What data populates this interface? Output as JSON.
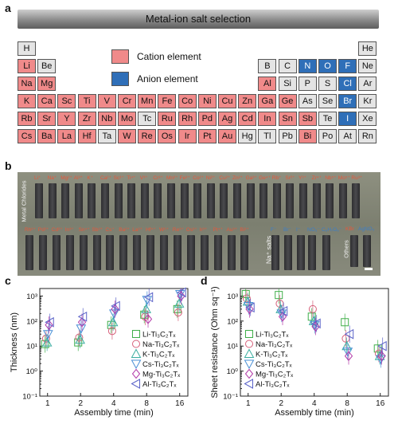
{
  "panels": {
    "a": "a",
    "b": "b",
    "c": "c",
    "d": "d"
  },
  "table": {
    "title": "Metal-ion salt selection",
    "legend": {
      "cation": "Cation element",
      "anion": "Anion element"
    },
    "rows": [
      [
        [
          "H",
          "o"
        ],
        null,
        null,
        null,
        null,
        null,
        null,
        null,
        null,
        null,
        null,
        null,
        null,
        null,
        null,
        null,
        null,
        [
          "He",
          "o"
        ]
      ],
      [
        [
          "Li",
          "c"
        ],
        [
          "Be",
          "o"
        ],
        null,
        null,
        null,
        null,
        null,
        null,
        null,
        null,
        null,
        null,
        [
          "B",
          "o"
        ],
        [
          "C",
          "o"
        ],
        [
          "N",
          "a"
        ],
        [
          "O",
          "a"
        ],
        [
          "F",
          "a"
        ],
        [
          "Ne",
          "o"
        ]
      ],
      [
        [
          "Na",
          "c"
        ],
        [
          "Mg",
          "c"
        ],
        null,
        null,
        null,
        null,
        null,
        null,
        null,
        null,
        null,
        null,
        [
          "Al",
          "c"
        ],
        [
          "Si",
          "o"
        ],
        [
          "P",
          "o"
        ],
        [
          "S",
          "o"
        ],
        [
          "Cl",
          "a"
        ],
        [
          "Ar",
          "o"
        ]
      ],
      [
        [
          "K",
          "c"
        ],
        [
          "Ca",
          "c"
        ],
        [
          "Sc",
          "c"
        ],
        [
          "Ti",
          "c"
        ],
        [
          "V",
          "c"
        ],
        [
          "Cr",
          "c"
        ],
        [
          "Mn",
          "c"
        ],
        [
          "Fe",
          "c"
        ],
        [
          "Co",
          "c"
        ],
        [
          "Ni",
          "c"
        ],
        [
          "Cu",
          "c"
        ],
        [
          "Zn",
          "c"
        ],
        [
          "Ga",
          "c"
        ],
        [
          "Ge",
          "c"
        ],
        [
          "As",
          "o"
        ],
        [
          "Se",
          "o"
        ],
        [
          "Br",
          "a"
        ],
        [
          "Kr",
          "o"
        ]
      ],
      [
        [
          "Rb",
          "c"
        ],
        [
          "Sr",
          "c"
        ],
        [
          "Y",
          "c"
        ],
        [
          "Zr",
          "c"
        ],
        [
          "Nb",
          "c"
        ],
        [
          "Mo",
          "c"
        ],
        [
          "Tc",
          "o"
        ],
        [
          "Ru",
          "c"
        ],
        [
          "Rh",
          "c"
        ],
        [
          "Pd",
          "c"
        ],
        [
          "Ag",
          "c"
        ],
        [
          "Cd",
          "c"
        ],
        [
          "In",
          "c"
        ],
        [
          "Sn",
          "c"
        ],
        [
          "Sb",
          "c"
        ],
        [
          "Te",
          "o"
        ],
        [
          "I",
          "a"
        ],
        [
          "Xe",
          "o"
        ]
      ],
      [
        [
          "Cs",
          "c"
        ],
        [
          "Ba",
          "c"
        ],
        [
          "La",
          "c"
        ],
        [
          "Hf",
          "c"
        ],
        [
          "Ta",
          "o"
        ],
        [
          "W",
          "c"
        ],
        [
          "Re",
          "c"
        ],
        [
          "Os",
          "c"
        ],
        [
          "Ir",
          "c"
        ],
        [
          "Pt",
          "c"
        ],
        [
          "Au",
          "c"
        ],
        [
          "Hg",
          "o"
        ],
        [
          "Tl",
          "o"
        ],
        [
          "Pb",
          "o"
        ],
        [
          "Bi",
          "c"
        ],
        [
          "Po",
          "o"
        ],
        [
          "At",
          "o"
        ],
        [
          "Rn",
          "o"
        ]
      ]
    ]
  },
  "photo": {
    "metal_chlorides_label": "Metal Chlorides",
    "na_salts_label": "Na⁺ salts",
    "others_label": "Others",
    "top_ions": [
      "Li⁺",
      "Na⁺",
      "Mg²⁺",
      "Al³⁺",
      "K⁺",
      "Ca²⁺",
      "Sc³⁺",
      "Ti⁴⁺",
      "V³⁺",
      "Cr³⁺",
      "Mn²⁺",
      "Fe³⁺",
      "Co²⁺",
      "Ni²⁺",
      "Cu²⁺",
      "Zn²⁺",
      "Ga³⁺",
      "Ge⁴⁺",
      "Rb⁺",
      "Sr²⁺",
      "Y³⁺",
      "Zr⁴⁺",
      "Nb⁵⁺",
      "Mo⁵⁺",
      "Ru³⁺"
    ],
    "bottom_ions": [
      "Rh³⁺",
      "Pd²⁺",
      "Cd²⁺",
      "In³⁺",
      "Sn⁴⁺",
      "Sb³⁺",
      "Cs⁺",
      "Ba²⁺",
      "La³⁺",
      "Hf⁴⁺",
      "W⁶⁺",
      "Re³⁺",
      "Os³⁺",
      "Ir³⁺",
      "Pt⁴⁺",
      "Au³⁺",
      "Bi³⁺"
    ],
    "anion_ions": [
      "F⁻",
      "Br⁻",
      "I⁻",
      "NO₃⁻",
      "C₆H₇O₆⁻"
    ],
    "other_ions": [
      "KBr",
      "AgNO₃"
    ]
  },
  "chart_data": [
    {
      "type": "scatter",
      "xlabel": "Assembly time (min)",
      "ylabel": "Thickness (nm)",
      "x_scale": "log2",
      "y_scale": "log10",
      "xticks": [
        "1",
        "2",
        "4",
        "8",
        "16"
      ],
      "yticks": [
        "10⁻¹",
        "10⁰",
        "10¹",
        "10²",
        "10³"
      ],
      "ylim": [
        0.1,
        2000
      ],
      "legend_position": "bottom-right",
      "series": [
        {
          "name": "Li-Ti₃C₂Tₓ",
          "marker": "square",
          "color": "#3fae49",
          "points": [
            [
              1,
              12
            ],
            [
              2,
              14
            ],
            [
              4,
              70
            ],
            [
              8,
              180
            ],
            [
              16,
              300
            ]
          ]
        },
        {
          "name": "Na-Ti₃C₂Tₓ",
          "marker": "circle",
          "color": "#d6607a",
          "points": [
            [
              1,
              20
            ],
            [
              2,
              22
            ],
            [
              4,
              40
            ],
            [
              8,
              150
            ],
            [
              16,
              220
            ]
          ]
        },
        {
          "name": "K-Ti₃C₂Tₓ",
          "marker": "triangle-up",
          "color": "#3aaea0",
          "points": [
            [
              1,
              14
            ],
            [
              2,
              18
            ],
            [
              4,
              90
            ],
            [
              8,
              300
            ],
            [
              16,
              500
            ]
          ]
        },
        {
          "name": "Cs-Ti₃C₂Tₓ",
          "marker": "triangle-down",
          "color": "#4a8fd6",
          "points": [
            [
              1,
              30
            ],
            [
              2,
              50
            ],
            [
              4,
              200
            ],
            [
              8,
              700
            ],
            [
              16,
              1200
            ]
          ]
        },
        {
          "name": "Mg-Ti₃C₂Tₓ",
          "marker": "diamond",
          "color": "#b23aa8",
          "points": [
            [
              1,
              70
            ],
            [
              2,
              90
            ],
            [
              4,
              300
            ],
            [
              8,
              120
            ],
            [
              16,
              1000
            ]
          ]
        },
        {
          "name": "Al-Ti₃C₂Tₓ",
          "marker": "triangle-left",
          "color": "#5a62c8",
          "points": [
            [
              1,
              90
            ],
            [
              2,
              150
            ],
            [
              4,
              400
            ],
            [
              8,
              900
            ],
            [
              16,
              1400
            ]
          ]
        }
      ]
    },
    {
      "type": "scatter",
      "xlabel": "Assembly time (min)",
      "ylabel": "Sheet resistance (Ohm sq⁻¹)",
      "x_scale": "log2",
      "y_scale": "log10",
      "xticks": [
        "1",
        "2",
        "4",
        "8",
        "16"
      ],
      "yticks": [
        "10⁻¹",
        "10⁰",
        "10¹",
        "10²",
        "10³"
      ],
      "ylim": [
        0.1,
        2000
      ],
      "legend_position": "bottom-left",
      "series": [
        {
          "name": "Li-Ti₃C₂Tₓ",
          "marker": "square",
          "color": "#3fae49",
          "points": [
            [
              1,
              1200
            ],
            [
              2,
              1100
            ],
            [
              4,
              150
            ],
            [
              8,
              90
            ],
            [
              16,
              8
            ]
          ]
        },
        {
          "name": "Na-Ti₃C₂Tₓ",
          "marker": "circle",
          "color": "#d6607a",
          "points": [
            [
              1,
              800
            ],
            [
              2,
              500
            ],
            [
              4,
              300
            ],
            [
              8,
              20
            ],
            [
              16,
              5
            ]
          ]
        },
        {
          "name": "K-Ti₃C₂Tₓ",
          "marker": "triangle-up",
          "color": "#3aaea0",
          "points": [
            [
              1,
              600
            ],
            [
              2,
              300
            ],
            [
              4,
              100
            ],
            [
              8,
              10
            ],
            [
              16,
              4
            ]
          ]
        },
        {
          "name": "Cs-Ti₃C₂Tₓ",
          "marker": "triangle-down",
          "color": "#4a8fd6",
          "points": [
            [
              1,
              400
            ],
            [
              2,
              200
            ],
            [
              4,
              70
            ],
            [
              8,
              6
            ],
            [
              16,
              3
            ]
          ]
        },
        {
          "name": "Mg-Ti₃C₂Tₓ",
          "marker": "diamond",
          "color": "#b23aa8",
          "points": [
            [
              1,
              300
            ],
            [
              2,
              150
            ],
            [
              4,
              60
            ],
            [
              8,
              4
            ],
            [
              16,
              4
            ]
          ]
        },
        {
          "name": "Al-Ti₃C₂Tₓ",
          "marker": "triangle-left",
          "color": "#5a62c8",
          "points": [
            [
              1,
              350
            ],
            [
              2,
              250
            ],
            [
              4,
              80
            ],
            [
              8,
              30
            ],
            [
              16,
              10
            ]
          ]
        }
      ]
    }
  ]
}
